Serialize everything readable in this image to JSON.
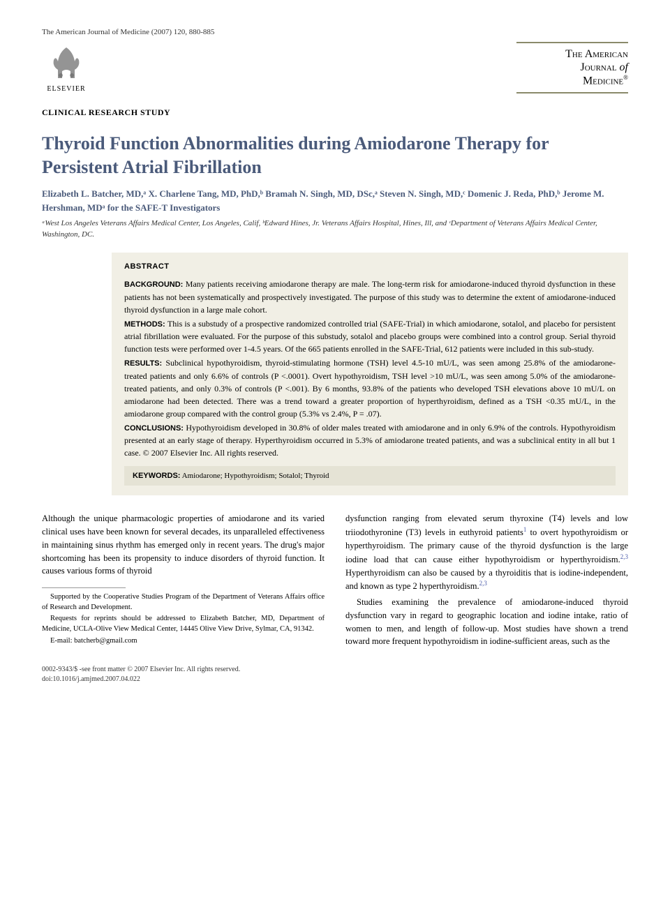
{
  "citation": "The American Journal of Medicine (2007) 120, 880-885",
  "publisher": {
    "name": "ELSEVIER"
  },
  "journal_logo": {
    "line1": "The American",
    "line2a": "Journal",
    "line2b": "of",
    "line3": "Medicine",
    "reg": "®"
  },
  "section_label": "CLINICAL RESEARCH STUDY",
  "title": "Thyroid Function Abnormalities during Amiodarone Therapy for Persistent Atrial Fibrillation",
  "authors_html": "Elizabeth L. Batcher, MD,ᵃ X. Charlene Tang, MD, PhD,ᵇ Bramah N. Singh, MD, DSc,ᵃ Steven N. Singh, MD,ᶜ Domenic J. Reda, PhD,ᵇ Jerome M. Hershman, MDᵃ for the SAFE-T Investigators",
  "affiliations": "ᵃWest Los Angeles Veterans Affairs Medical Center, Los Angeles, Calif, ᵇEdward Hines, Jr. Veterans Affairs Hospital, Hines, Ill, and ᶜDepartment of Veterans Affairs Medical Center, Washington, DC.",
  "abstract": {
    "label": "ABSTRACT",
    "sections": [
      {
        "label": "BACKGROUND:",
        "text": "Many patients receiving amiodarone therapy are male. The long-term risk for amiodarone-induced thyroid dysfunction in these patients has not been systematically and prospectively investigated. The purpose of this study was to determine the extent of amiodarone-induced thyroid dysfunction in a large male cohort."
      },
      {
        "label": "METHODS:",
        "text": "This is a substudy of a prospective randomized controlled trial (SAFE-Trial) in which amiodarone, sotalol, and placebo for persistent atrial fibrillation were evaluated. For the purpose of this substudy, sotalol and placebo groups were combined into a control group. Serial thyroid function tests were performed over 1-4.5 years. Of the 665 patients enrolled in the SAFE-Trial, 612 patients were included in this sub-study."
      },
      {
        "label": "RESULTS:",
        "text": "Subclinical hypothyroidism, thyroid-stimulating hormone (TSH) level 4.5-10 mU/L, was seen among 25.8% of the amiodarone-treated patients and only 6.6% of controls (P <.0001). Overt hypothyroidism, TSH level >10 mU/L, was seen among 5.0% of the amiodarone-treated patients, and only 0.3% of controls (P <.001). By 6 months, 93.8% of the patients who developed TSH elevations above 10 mU/L on amiodarone had been detected. There was a trend toward a greater proportion of hyperthyroidism, defined as a TSH <0.35 mU/L, in the amiodarone group compared with the control group (5.3% vs 2.4%, P = .07)."
      },
      {
        "label": "CONCLUSIONS:",
        "text": "Hypothyroidism developed in 30.8% of older males treated with amiodarone and in only 6.9% of the controls. Hypothyroidism presented at an early stage of therapy. Hyperthyroidism occurred in 5.3% of amiodarone treated patients, and was a subclinical entity in all but 1 case. © 2007 Elsevier Inc. All rights reserved."
      }
    ],
    "keywords_label": "KEYWORDS:",
    "keywords": "Amiodarone; Hypothyroidism; Sotalol; Thyroid"
  },
  "body": {
    "left": [
      "Although the unique pharmacologic properties of amiodarone and its varied clinical uses have been known for several decades, its unparalleled effectiveness in maintaining sinus rhythm has emerged only in recent years. The drug's major shortcoming has been its propensity to induce disorders of thyroid function. It causes various forms of thyroid"
    ],
    "right_p1": "dysfunction ranging from elevated serum thyroxine (T4) levels and low triiodothyronine (T3) levels in euthyroid patients",
    "right_p1_ref": "1",
    "right_p1_cont": " to overt hypothyroidism or hyperthyroidism. The primary cause of the thyroid dysfunction is the large iodine load that can cause either hypothyroidism or hyperthyroidism.",
    "right_p1_ref2": "2,3",
    "right_p1_cont2": " Hyperthyroidism can also be caused by a thyroiditis that is iodine-independent, and known as type 2 hyperthyroidism.",
    "right_p1_ref3": "2,3",
    "right_p2": "Studies examining the prevalence of amiodarone-induced thyroid dysfunction vary in regard to geographic location and iodine intake, ratio of women to men, and length of follow-up. Most studies have shown a trend toward more frequent hypothyroidism in iodine-sufficient areas, such as the"
  },
  "footnotes": {
    "support": "Supported by the Cooperative Studies Program of the Department of Veterans Affairs office of Research and Development.",
    "reprints": "Requests for reprints should be addressed to Elizabeth Batcher, MD, Department of Medicine, UCLA-Olive View Medical Center, 14445 Olive View Drive, Sylmar, CA, 91342.",
    "email_label": "E-mail: ",
    "email": "batcherb@gmail.com"
  },
  "bottom": {
    "line1": "0002-9343/$ -see front matter © 2007 Elsevier Inc. All rights reserved.",
    "line2": "doi:10.1016/j.amjmed.2007.04.022"
  },
  "colors": {
    "title": "#4a5a7a",
    "abstract_bg": "#f1efe5",
    "keywords_bg": "#e5e3d5",
    "ref_link": "#4a5aaa",
    "logo_border": "#8a8a6a"
  }
}
